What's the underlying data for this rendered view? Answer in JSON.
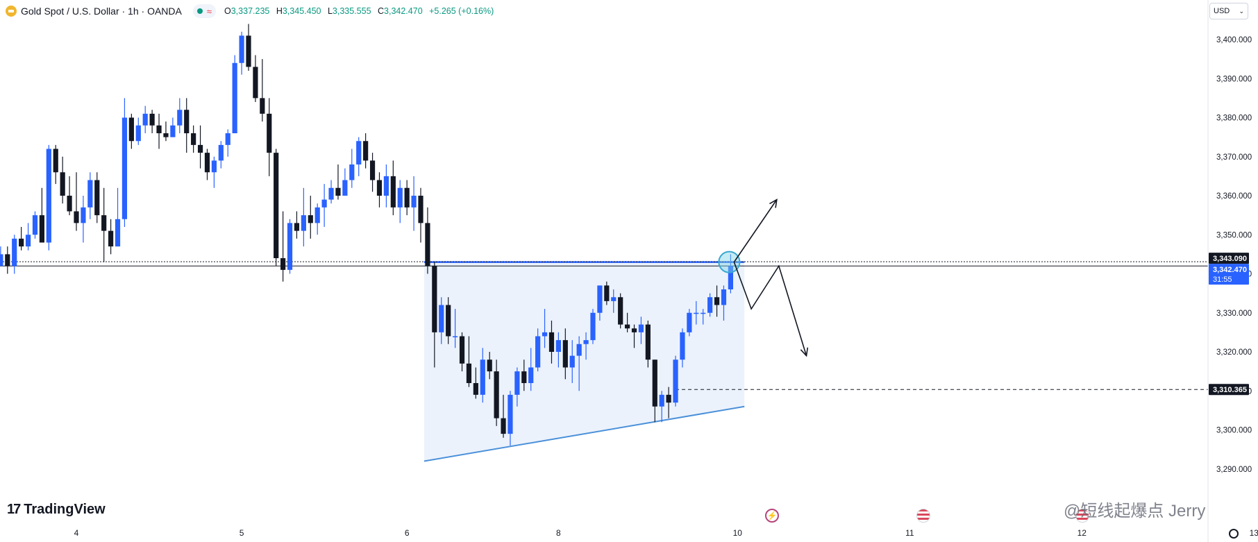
{
  "header": {
    "title": "Gold Spot / U.S. Dollar · 1h · OANDA",
    "open_label": "O",
    "open": "3,337.235",
    "high_label": "H",
    "high": "3,345.450",
    "low_label": "L",
    "low": "3,335.555",
    "close_label": "C",
    "close": "3,342.470",
    "change": "+5.265 (+0.16%)"
  },
  "currency": "USD",
  "branding": "TradingView",
  "watermark": "@短线起爆点 Jerry",
  "icons": [
    "gold-icon",
    "status-dot-icon",
    "wave-icon",
    "flash-icon",
    "us-flag-icon",
    "settings-icon"
  ],
  "colors": {
    "up": "#2962ff",
    "down": "#131722",
    "accent": "#2962ff",
    "zone": "#e8f0fc",
    "marker": "#7fd3e6"
  },
  "chart_data": {
    "type": "candlestick",
    "symbol": "Gold Spot / U.S. Dollar",
    "interval": "1h",
    "ylim": [
      3285,
      3410
    ],
    "yticks": [
      "3,290.000",
      "3,300.000",
      "3,310.000",
      "3,320.000",
      "3,330.000",
      "3,340.000",
      "3,350.000",
      "3,360.000",
      "3,370.000",
      "3,380.000",
      "3,390.000",
      "3,400.000"
    ],
    "xticks": [
      {
        "label": "4",
        "x": 0
      },
      {
        "label": "5",
        "x": 24
      },
      {
        "label": "6",
        "x": 48
      },
      {
        "label": "8",
        "x": 70
      },
      {
        "label": "10",
        "x": 96
      },
      {
        "label": "11",
        "x": 121
      },
      {
        "label": "12",
        "x": 146
      },
      {
        "label": "13",
        "x": 171
      }
    ],
    "candles": [
      [
        -12,
        3354,
        3358,
        3339,
        3342
      ],
      [
        -11,
        3342,
        3347,
        3343,
        3345
      ],
      [
        -10,
        3345,
        3347,
        3340,
        3342
      ],
      [
        -9,
        3342,
        3350,
        3340,
        3349
      ],
      [
        -8,
        3349,
        3352,
        3346,
        3347
      ],
      [
        -7,
        3347,
        3353,
        3346,
        3350
      ],
      [
        -6,
        3350,
        3356,
        3349,
        3355
      ],
      [
        -5,
        3355,
        3362,
        3348,
        3348
      ],
      [
        -4,
        3348,
        3373,
        3346,
        3372
      ],
      [
        -3,
        3372,
        3373,
        3363,
        3366
      ],
      [
        -2,
        3366,
        3370,
        3358,
        3360
      ],
      [
        -1,
        3360,
        3365,
        3355,
        3356
      ],
      [
        0,
        3356,
        3366,
        3351,
        3353
      ],
      [
        1,
        3353,
        3360,
        3348,
        3357
      ],
      [
        2,
        3357,
        3366,
        3354,
        3364
      ],
      [
        3,
        3364,
        3366,
        3353,
        3355
      ],
      [
        4,
        3355,
        3362,
        3343,
        3351
      ],
      [
        5,
        3351,
        3354,
        3345,
        3347
      ],
      [
        6,
        3347,
        3362,
        3347,
        3354
      ],
      [
        7,
        3354,
        3385,
        3352,
        3380
      ],
      [
        8,
        3380,
        3381,
        3372,
        3374
      ],
      [
        9,
        3374,
        3380,
        3373,
        3378
      ],
      [
        10,
        3378,
        3383,
        3376,
        3381
      ],
      [
        11,
        3381,
        3382,
        3376,
        3378
      ],
      [
        12,
        3378,
        3381,
        3372,
        3376
      ],
      [
        13,
        3376,
        3379,
        3374,
        3375
      ],
      [
        14,
        3375,
        3380,
        3375,
        3378
      ],
      [
        15,
        3378,
        3385,
        3376,
        3382
      ],
      [
        16,
        3382,
        3385,
        3371,
        3376
      ],
      [
        17,
        3376,
        3378,
        3371,
        3373
      ],
      [
        18,
        3373,
        3378,
        3367,
        3371
      ],
      [
        19,
        3371,
        3372,
        3364,
        3366
      ],
      [
        20,
        3366,
        3370,
        3362,
        3369
      ],
      [
        21,
        3369,
        3374,
        3367,
        3373
      ],
      [
        22,
        3373,
        3377,
        3370,
        3376
      ],
      [
        23,
        3376,
        3396,
        3376,
        3394
      ],
      [
        24,
        3394,
        3402,
        3391,
        3401
      ],
      [
        25,
        3401,
        3404,
        3392,
        3393
      ],
      [
        26,
        3393,
        3396,
        3384,
        3385
      ],
      [
        27,
        3385,
        3395,
        3379,
        3381
      ],
      [
        28,
        3381,
        3385,
        3365,
        3371
      ],
      [
        29,
        3371,
        3372,
        3342,
        3344
      ],
      [
        30,
        3344,
        3356,
        3338,
        3341
      ],
      [
        31,
        3341,
        3354,
        3340,
        3353
      ],
      [
        32,
        3353,
        3356,
        3349,
        3351
      ],
      [
        33,
        3351,
        3362,
        3347,
        3355
      ],
      [
        34,
        3355,
        3360,
        3349,
        3353
      ],
      [
        35,
        3353,
        3358,
        3350,
        3357
      ],
      [
        36,
        3357,
        3363,
        3352,
        3359
      ],
      [
        37,
        3359,
        3364,
        3358,
        3362
      ],
      [
        38,
        3362,
        3368,
        3359,
        3360
      ],
      [
        39,
        3360,
        3367,
        3360,
        3364
      ],
      [
        40,
        3364,
        3372,
        3362,
        3368
      ],
      [
        41,
        3368,
        3375,
        3365,
        3374
      ],
      [
        42,
        3374,
        3376,
        3367,
        3369
      ],
      [
        43,
        3369,
        3371,
        3361,
        3364
      ],
      [
        44,
        3364,
        3366,
        3357,
        3360
      ],
      [
        45,
        3360,
        3368,
        3357,
        3365
      ],
      [
        46,
        3365,
        3369,
        3355,
        3357
      ],
      [
        47,
        3357,
        3364,
        3353,
        3362
      ],
      [
        48,
        3362,
        3364,
        3355,
        3357
      ],
      [
        49,
        3357,
        3365,
        3351,
        3360
      ],
      [
        50,
        3360,
        3362,
        3348,
        3353
      ],
      [
        51,
        3353,
        3357,
        3340,
        3342
      ],
      [
        52,
        3342,
        3343,
        3316,
        3325
      ],
      [
        53,
        3325,
        3334,
        3322,
        3332
      ],
      [
        54,
        3332,
        3334,
        3322,
        3324
      ],
      [
        55,
        3324,
        3331,
        3321,
        3324
      ],
      [
        56,
        3324,
        3325,
        3315,
        3317
      ],
      [
        57,
        3317,
        3324,
        3311,
        3312
      ],
      [
        58,
        3312,
        3316,
        3308,
        3309
      ],
      [
        59,
        3309,
        3321,
        3307,
        3318
      ],
      [
        60,
        3318,
        3320,
        3313,
        3315
      ],
      [
        61,
        3315,
        3318,
        3301,
        3303
      ],
      [
        62,
        3303,
        3309,
        3298,
        3299
      ],
      [
        63,
        3299,
        3310,
        3296,
        3309
      ],
      [
        64,
        3309,
        3316,
        3306,
        3315
      ],
      [
        65,
        3315,
        3318,
        3310,
        3312
      ],
      [
        66,
        3312,
        3321,
        3310,
        3316
      ],
      [
        67,
        3316,
        3326,
        3315,
        3324
      ],
      [
        68,
        3324,
        3331,
        3321,
        3325
      ],
      [
        69,
        3325,
        3328,
        3317,
        3320
      ],
      [
        70,
        3320,
        3325,
        3316,
        3323
      ],
      [
        71,
        3323,
        3326,
        3313,
        3316
      ],
      [
        72,
        3316,
        3323,
        3312,
        3319
      ],
      [
        73,
        3319,
        3324,
        3310,
        3322
      ],
      [
        74,
        3322,
        3325,
        3318,
        3323
      ],
      [
        75,
        3323,
        3331,
        3322,
        3330
      ],
      [
        76,
        3330,
        3337,
        3328,
        3337
      ],
      [
        77,
        3337,
        3338,
        3332,
        3333
      ],
      [
        78,
        3333,
        3336,
        3330,
        3334
      ],
      [
        79,
        3334,
        3335,
        3326,
        3327
      ],
      [
        80,
        3327,
        3330,
        3325,
        3326
      ],
      [
        81,
        3326,
        3327,
        3321,
        3325
      ],
      [
        82,
        3325,
        3329,
        3322,
        3327
      ],
      [
        83,
        3327,
        3328,
        3316,
        3318
      ],
      [
        84,
        3318,
        3318,
        3302,
        3306
      ],
      [
        85,
        3306,
        3310,
        3302,
        3309
      ],
      [
        86,
        3309,
        3311,
        3303,
        3307
      ],
      [
        87,
        3307,
        3319,
        3306,
        3318
      ],
      [
        88,
        3318,
        3326,
        3316,
        3325
      ],
      [
        89,
        3325,
        3331,
        3324,
        3330
      ],
      [
        90,
        3330,
        3333,
        3327,
        3330
      ],
      [
        91,
        3330,
        3331,
        3327,
        3330
      ],
      [
        92,
        3330,
        3335,
        3329,
        3334
      ],
      [
        93,
        3334,
        3337,
        3329,
        3332
      ],
      [
        94,
        3332,
        3337,
        3328,
        3336
      ],
      [
        95,
        3336,
        3345,
        3335,
        3342
      ]
    ],
    "price_labels": [
      {
        "value": 3343.09,
        "text": "3,343.090",
        "style": "dark"
      },
      {
        "value": 3342.47,
        "text": "3,342.470",
        "countdown": "31:55",
        "style": "blue"
      },
      {
        "value": 3310.365,
        "text": "3,310.365",
        "style": "dark"
      }
    ],
    "horizontal_lines": [
      {
        "y": 3343.09,
        "style": "dotted",
        "color": "#131722"
      },
      {
        "y": 3342.0,
        "style": "solid",
        "color": "#131722"
      },
      {
        "y": 3310.365,
        "style": "dashed",
        "color": "#131722",
        "x_from": 87
      }
    ],
    "drawings": {
      "triangle_zone": {
        "top_y": 3343,
        "top_x": [
          51,
          97
        ],
        "bottom_left": [
          51,
          3292
        ],
        "bottom_right": [
          97,
          3306
        ]
      },
      "circle_marker": {
        "x": 94.8,
        "y": 3343
      },
      "arrow_up": [
        [
          95.5,
          3343
        ],
        [
          101.7,
          3359
        ]
      ],
      "arrow_down": [
        [
          95.5,
          3343
        ],
        [
          98,
          3331
        ],
        [
          102,
          3342
        ],
        [
          106,
          3319
        ]
      ]
    }
  }
}
